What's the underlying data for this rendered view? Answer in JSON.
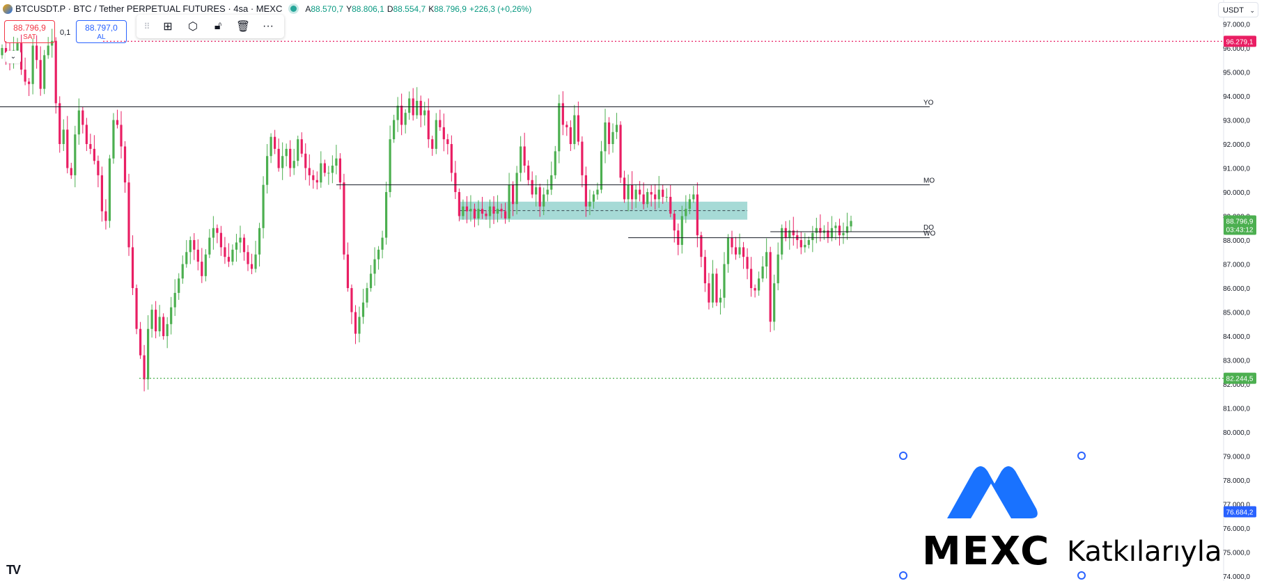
{
  "header": {
    "symbol": "BTCUSDT.P · BTC / Tether PERPETUAL FUTURES · 4sa · MEXC",
    "ohlc": [
      {
        "k": "A",
        "v": "88.570,7"
      },
      {
        "k": "Y",
        "v": "88.806,1"
      },
      {
        "k": "D",
        "v": "88.554,7"
      },
      {
        "k": "K",
        "v": "88.796,9"
      }
    ],
    "change": "+226,3 (+0,26%)"
  },
  "trade": {
    "sell_price": "88.796,9",
    "sell_label": "SAT",
    "spread": "0,1",
    "buy_price": "88.797,0",
    "buy_label": "AL"
  },
  "currency": "USDT",
  "watermark": {
    "word": "MEXC",
    "suffix": "Katkılarıyla"
  },
  "colors": {
    "up": "#4caf50",
    "down": "#e91e63",
    "zone": "#80cbc4",
    "accent": "#2962ff"
  },
  "chart_data": {
    "type": "candlestick",
    "y_range": [
      73800,
      98000
    ],
    "y_ticks": [
      "97.000,0",
      "96.000,0",
      "95.000,0",
      "94.000,0",
      "93.000,0",
      "92.000,0",
      "91.000,0",
      "90.000,0",
      "89.000,0",
      "88.000,0",
      "87.000,0",
      "86.000,0",
      "85.000,0",
      "84.000,0",
      "83.000,0",
      "82.000,0",
      "81.000,0",
      "80.000,0",
      "79.000,0",
      "78.000,0",
      "77.000,0",
      "76.000,0",
      "75.000,0",
      "74.000,0"
    ],
    "horizontal_levels": [
      {
        "label": "YO",
        "value": 93550
      },
      {
        "label": "MO",
        "value": 90300
      },
      {
        "label": "DO",
        "value": 88350
      },
      {
        "label": "WO",
        "value": 88100
      }
    ],
    "alert_lines": [
      {
        "value": 96279.1,
        "label": "96.279,1",
        "color": "#e91e63"
      },
      {
        "value": 82244.5,
        "label": "82.244,5",
        "color": "#4caf50"
      }
    ],
    "price_tags": [
      {
        "value": 88796.9,
        "label": "88.796,9",
        "sub": "03:43:12",
        "color": "#4caf50"
      },
      {
        "value": 76684.2,
        "label": "76.684,2",
        "color": "#2962ff"
      }
    ],
    "zone": {
      "from_index": 119,
      "to_index": 194,
      "top": 89600,
      "bottom": 88850
    },
    "closes": [
      96000,
      95800,
      95500,
      95900,
      96200,
      95100,
      94600,
      94500,
      96100,
      95500,
      94300,
      95700,
      96100,
      96300,
      93700,
      92000,
      92600,
      91000,
      90700,
      92400,
      93400,
      92800,
      92000,
      91800,
      91300,
      90700,
      89200,
      88800,
      91400,
      93000,
      92800,
      91900,
      90400,
      87700,
      86000,
      84300,
      83200,
      82200,
      84300,
      85100,
      84200,
      84800,
      84000,
      84500,
      85200,
      85800,
      86400,
      87000,
      87500,
      88000,
      87600,
      87100,
      86500,
      87400,
      88100,
      88500,
      88300,
      87700,
      87300,
      87100,
      87600,
      87900,
      88100,
      87500,
      87000,
      86800,
      87400,
      88500,
      90300,
      91500,
      92300,
      91800,
      91000,
      91500,
      91800,
      91000,
      91300,
      92200,
      91600,
      91000,
      90700,
      90500,
      90400,
      91200,
      90800,
      90800,
      91100,
      91400,
      90400,
      87400,
      86000,
      85000,
      84100,
      84800,
      85400,
      86000,
      86600,
      87200,
      87600,
      88100,
      90000,
      92200,
      93000,
      93600,
      92800,
      93300,
      93900,
      93200,
      93800,
      93200,
      93400,
      92200,
      91800,
      93000,
      92700,
      92200,
      92000,
      90800,
      90000,
      89000,
      89400,
      89200,
      89300,
      88900,
      89300,
      89100,
      89000,
      89400,
      89100,
      89300,
      89200,
      88900,
      90300,
      89500,
      90800,
      91900,
      91100,
      90500,
      89900,
      90200,
      89400,
      89900,
      90100,
      90700,
      91700,
      93700,
      92800,
      92700,
      92000,
      93200,
      92100,
      90700,
      89400,
      89600,
      89900,
      90100,
      91700,
      92900,
      92000,
      92500,
      92800,
      90600,
      89700,
      90300,
      89700,
      90100,
      89900,
      89500,
      90000,
      89900,
      89700,
      90100,
      89800,
      89800,
      89100,
      88400,
      87800,
      89000,
      89300,
      89700,
      89900,
      88200,
      87300,
      86200,
      85400,
      86600,
      85400,
      85600,
      87000,
      88100,
      87700,
      87400,
      87700,
      87300,
      86800,
      86000,
      85900,
      86400,
      86900,
      87500,
      84600,
      86200,
      87400,
      88500,
      88100,
      88400,
      88200,
      88000,
      87700,
      87800,
      88000,
      88300,
      88500,
      88300,
      88400,
      88100,
      88500,
      88600,
      88200,
      88300,
      88570,
      88797
    ]
  }
}
